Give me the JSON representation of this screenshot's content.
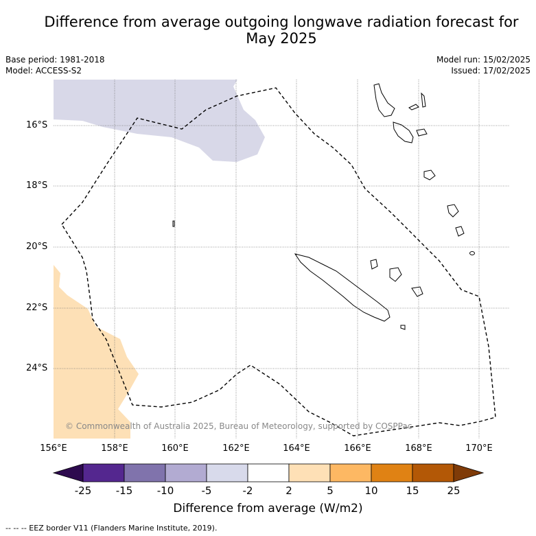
{
  "title_line1": "Difference from average outgoing longwave radiation forecast for",
  "title_line2": "May 2025",
  "meta": {
    "base_period": "Base period: 1981-2018",
    "model": "Model: ACCESS-S2",
    "model_run": "Model run: 15/02/2025",
    "issued": "Issued: 17/02/2025"
  },
  "map": {
    "lat_ticks": [
      "16°S",
      "18°S",
      "20°S",
      "22°S",
      "24°S"
    ],
    "lon_ticks": [
      "156°E",
      "158°E",
      "160°E",
      "162°E",
      "164°E",
      "166°E",
      "168°E",
      "170°E"
    ],
    "copyright": "© Commonwealth of Australia 2025, Bureau of Meteorology, supported by COSPPac",
    "anomaly_regions": [
      {
        "category": "-5 to -2",
        "color": "#d8d8e8"
      },
      {
        "category": "2 to 5",
        "color": "#fde0b6"
      }
    ]
  },
  "colorbar": {
    "labels": [
      "-25",
      "-15",
      "-10",
      "-5",
      "-2",
      "2",
      "5",
      "10",
      "15",
      "25"
    ],
    "colors": [
      "#2d0a4e",
      "#54278f",
      "#8073ac",
      "#b2abd2",
      "#d8daeb",
      "#ffffff",
      "#fee0b6",
      "#fdb863",
      "#e08214",
      "#b35806",
      "#7f3b08"
    ],
    "title": "Difference from average (W/m2)"
  },
  "footer": "--  --  -- EEZ border V11 (Flanders Marine Institute, 2019)."
}
